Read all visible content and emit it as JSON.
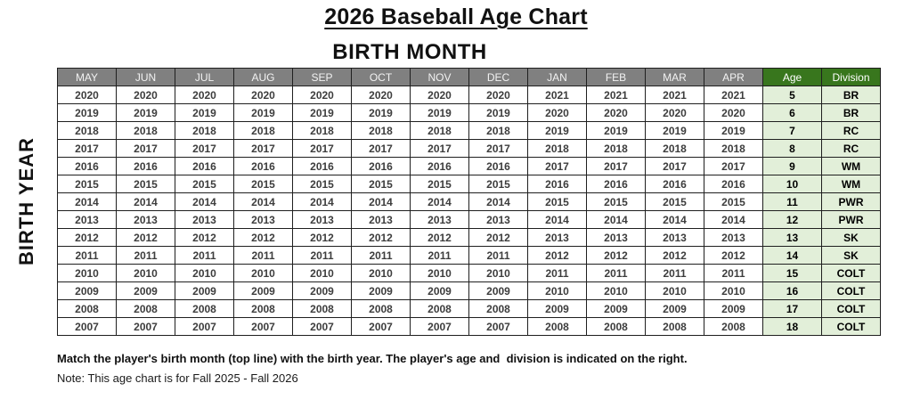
{
  "title": "2026 Baseball Age Chart",
  "subtitle": "BIRTH MONTH",
  "y_axis_label": "BIRTH YEAR",
  "table": {
    "month_headers": [
      "MAY",
      "JUN",
      "JUL",
      "AUG",
      "SEP",
      "OCT",
      "NOV",
      "DEC",
      "JAN",
      "FEB",
      "MAR",
      "APR"
    ],
    "age_header": "Age",
    "division_header": "Division",
    "rows": [
      {
        "months": [
          "2020",
          "2020",
          "2020",
          "2020",
          "2020",
          "2020",
          "2020",
          "2020",
          "2021",
          "2021",
          "2021",
          "2021"
        ],
        "age": "5",
        "division": "BR"
      },
      {
        "months": [
          "2019",
          "2019",
          "2019",
          "2019",
          "2019",
          "2019",
          "2019",
          "2019",
          "2020",
          "2020",
          "2020",
          "2020"
        ],
        "age": "6",
        "division": "BR"
      },
      {
        "months": [
          "2018",
          "2018",
          "2018",
          "2018",
          "2018",
          "2018",
          "2018",
          "2018",
          "2019",
          "2019",
          "2019",
          "2019"
        ],
        "age": "7",
        "division": "RC"
      },
      {
        "months": [
          "2017",
          "2017",
          "2017",
          "2017",
          "2017",
          "2017",
          "2017",
          "2017",
          "2018",
          "2018",
          "2018",
          "2018"
        ],
        "age": "8",
        "division": "RC"
      },
      {
        "months": [
          "2016",
          "2016",
          "2016",
          "2016",
          "2016",
          "2016",
          "2016",
          "2016",
          "2017",
          "2017",
          "2017",
          "2017"
        ],
        "age": "9",
        "division": "WM"
      },
      {
        "months": [
          "2015",
          "2015",
          "2015",
          "2015",
          "2015",
          "2015",
          "2015",
          "2015",
          "2016",
          "2016",
          "2016",
          "2016"
        ],
        "age": "10",
        "division": "WM"
      },
      {
        "months": [
          "2014",
          "2014",
          "2014",
          "2014",
          "2014",
          "2014",
          "2014",
          "2014",
          "2015",
          "2015",
          "2015",
          "2015"
        ],
        "age": "11",
        "division": "PWR"
      },
      {
        "months": [
          "2013",
          "2013",
          "2013",
          "2013",
          "2013",
          "2013",
          "2013",
          "2013",
          "2014",
          "2014",
          "2014",
          "2014"
        ],
        "age": "12",
        "division": "PWR"
      },
      {
        "months": [
          "2012",
          "2012",
          "2012",
          "2012",
          "2012",
          "2012",
          "2012",
          "2012",
          "2013",
          "2013",
          "2013",
          "2013"
        ],
        "age": "13",
        "division": "SK"
      },
      {
        "months": [
          "2011",
          "2011",
          "2011",
          "2011",
          "2011",
          "2011",
          "2011",
          "2011",
          "2012",
          "2012",
          "2012",
          "2012"
        ],
        "age": "14",
        "division": "SK"
      },
      {
        "months": [
          "2010",
          "2010",
          "2010",
          "2010",
          "2010",
          "2010",
          "2010",
          "2010",
          "2011",
          "2011",
          "2011",
          "2011"
        ],
        "age": "15",
        "division": "COLT"
      },
      {
        "months": [
          "2009",
          "2009",
          "2009",
          "2009",
          "2009",
          "2009",
          "2009",
          "2009",
          "2010",
          "2010",
          "2010",
          "2010"
        ],
        "age": "16",
        "division": "COLT"
      },
      {
        "months": [
          "2008",
          "2008",
          "2008",
          "2008",
          "2008",
          "2008",
          "2008",
          "2008",
          "2009",
          "2009",
          "2009",
          "2009"
        ],
        "age": "17",
        "division": "COLT"
      },
      {
        "months": [
          "2007",
          "2007",
          "2007",
          "2007",
          "2007",
          "2007",
          "2007",
          "2007",
          "2008",
          "2008",
          "2008",
          "2008"
        ],
        "age": "18",
        "division": "COLT"
      }
    ]
  },
  "footer": {
    "instruction": "Match the player's birth month (top line) with the birth year. The player's age and  division is indicated on the right.",
    "note": "Note: This age chart is for Fall 2025 - Fall 2026"
  },
  "colors": {
    "header_gray": "#808080",
    "header_green": "#38761d",
    "cell_green": "#e2efd9",
    "grid_line": "#1f1f1f",
    "year_text": "#3d3d3d"
  }
}
